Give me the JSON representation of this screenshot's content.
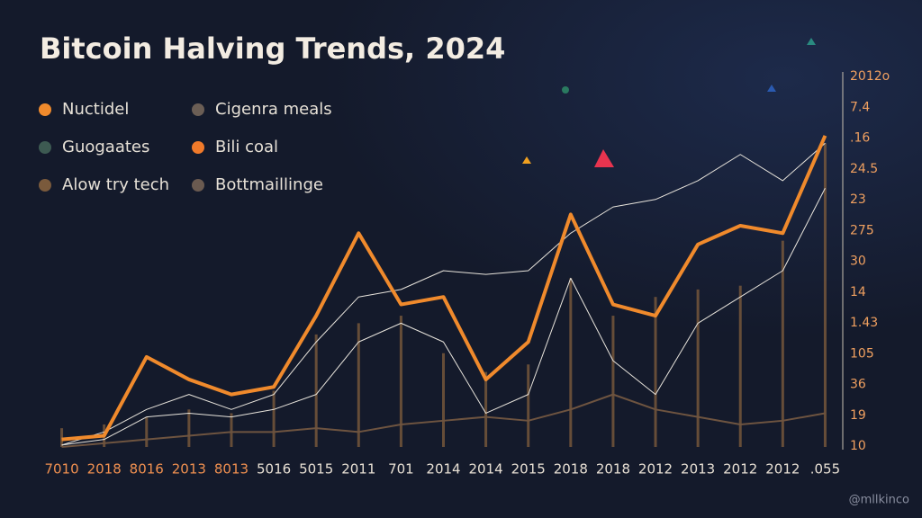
{
  "chart_data": {
    "type": "line",
    "title": "Bitcoin Halving Trends, 2024",
    "legend": [
      {
        "name": "Nuctidel",
        "color": "#f08a2c"
      },
      {
        "name": "Cigenra meals",
        "color": "#6b5e55"
      },
      {
        "name": "Guogaates",
        "color": "#3d5a52"
      },
      {
        "name": "Bili coal",
        "color": "#f07a2a"
      },
      {
        "name": "Alow try tech",
        "color": "#7a5a3c"
      },
      {
        "name": "Bottmaillinge",
        "color": "#6a5a50"
      }
    ],
    "categories": [
      "7010",
      "2018",
      "8016",
      "2013",
      "8013",
      "5016",
      "5015",
      "2011",
      "701",
      "2014",
      "2014",
      "2015",
      "2018",
      "2018",
      "2012",
      "2013",
      "2012",
      "2012",
      ".055"
    ],
    "right_labels": [
      "2012o",
      "7.4",
      ".16",
      "24.5",
      "23",
      "275",
      "30",
      "14",
      "1.43",
      "105",
      "36",
      "19",
      "10"
    ],
    "ylim": [
      0,
      100
    ],
    "bars": {
      "color": "#7a5a3c",
      "values": [
        5,
        6,
        8,
        10,
        9,
        15,
        30,
        33,
        35,
        25,
        20,
        22,
        45,
        35,
        40,
        42,
        43,
        55,
        81
      ]
    },
    "series": [
      {
        "color": "#6e5440",
        "width": 2,
        "values": [
          0,
          1,
          2,
          3,
          4,
          4,
          5,
          4,
          6,
          7,
          8,
          7,
          10,
          14,
          10,
          8,
          6,
          7,
          9
        ]
      },
      {
        "color": "#e8e4dc",
        "width": 1,
        "values": [
          0.5,
          2,
          8,
          9,
          8,
          10,
          14,
          28,
          33,
          28,
          9,
          14,
          45,
          23,
          14,
          33,
          40,
          47,
          69
        ]
      },
      {
        "color": "#e8e4dc",
        "width": 1,
        "values": [
          0.5,
          4,
          10,
          14,
          10,
          14,
          28,
          40,
          42,
          47,
          46,
          47,
          57,
          64,
          66,
          71,
          78,
          71,
          81
        ]
      },
      {
        "color": "#f08a2c",
        "width": 4,
        "values": [
          2,
          3,
          24,
          18,
          14,
          16,
          35,
          57,
          38,
          40,
          18,
          28,
          62,
          38,
          35,
          54,
          59,
          57,
          83
        ]
      }
    ],
    "watermark": "@mllkinco"
  }
}
